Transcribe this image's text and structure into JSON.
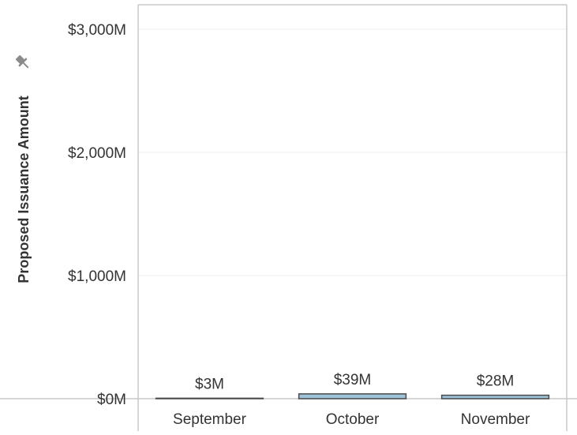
{
  "chart_data": {
    "type": "bar",
    "title": "",
    "xlabel": "",
    "ylabel": "Proposed Issuance Amount",
    "categories": [
      "September",
      "October",
      "November"
    ],
    "values": [
      3,
      39,
      28
    ],
    "value_labels": [
      "$3M",
      "$39M",
      "$28M"
    ],
    "unit": "M",
    "ylim": [
      0,
      3000
    ],
    "yticks": [
      0,
      1000,
      2000,
      3000
    ],
    "ytick_labels": [
      "$0M",
      "$1,000M",
      "$2,000M",
      "$3,000M"
    ],
    "grid": true,
    "legend": "none",
    "colors": {
      "bar_fill": "#9ec3d9",
      "bar_outline": "#4a4a4a",
      "grid": "#ececec",
      "axis": "#c8c8c8",
      "text": "#333333",
      "pin_icon": "#8a8a8a"
    }
  }
}
